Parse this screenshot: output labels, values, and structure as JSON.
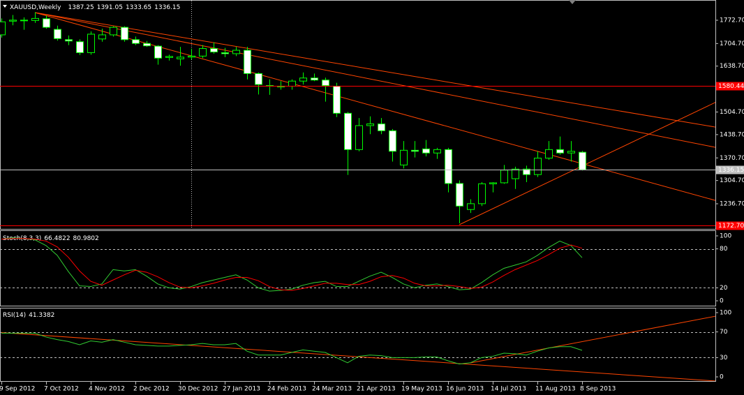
{
  "chart_data": [
    {
      "type": "candlestick",
      "title": "XAUUSD,Weekly",
      "x": [
        "9 Sep 2012",
        null,
        null,
        null,
        "7 Oct 2012",
        null,
        null,
        null,
        "4 Nov 2012",
        null,
        null,
        null,
        "2 Dec 2012",
        null,
        null,
        null,
        "30 Dec 2012",
        null,
        null,
        null,
        "27 Jan 2013",
        null,
        null,
        null,
        "24 Feb 2013",
        null,
        null,
        null,
        "24 Mar 2013",
        null,
        null,
        null,
        "21 Apr 2013",
        null,
        null,
        null,
        "19 May 2013",
        null,
        null,
        null,
        "16 Jun 2013",
        null,
        null,
        null,
        "14 Jul 2013",
        null,
        null,
        null,
        "11 Aug 2013",
        null,
        null,
        null,
        "8 Sep 2013"
      ],
      "open": [
        1730,
        1770,
        1773,
        1772,
        1777,
        1746,
        1716,
        1710,
        1678,
        1718,
        1730,
        1752,
        1716,
        1705,
        1697,
        1664,
        1660,
        1665,
        1668,
        1690,
        1678,
        1675,
        1685,
        1617,
        1580,
        1580,
        1580,
        1595,
        1604,
        1598,
        1580,
        1501,
        1395,
        1465,
        1470,
        1450,
        1350,
        1393,
        1397,
        1385,
        1395,
        1296,
        1220,
        1237,
        1295,
        1298,
        1310,
        1338,
        1322,
        1370,
        1395,
        1385,
        1387.25
      ],
      "high": [
        1778,
        1788,
        1781,
        1796,
        1787,
        1757,
        1728,
        1717,
        1740,
        1748,
        1755,
        1755,
        1725,
        1712,
        1700,
        1672,
        1695,
        1690,
        1700,
        1708,
        1692,
        1695,
        1695,
        1620,
        1600,
        1595,
        1600,
        1620,
        1617,
        1605,
        1590,
        1505,
        1487,
        1492,
        1487,
        1455,
        1420,
        1420,
        1423,
        1400,
        1400,
        1305,
        1250,
        1300,
        1300,
        1350,
        1345,
        1348,
        1390,
        1420,
        1433,
        1420,
        1391.05
      ],
      "low": [
        1722,
        1758,
        1745,
        1765,
        1748,
        1713,
        1700,
        1671,
        1672,
        1710,
        1725,
        1710,
        1700,
        1695,
        1643,
        1655,
        1640,
        1658,
        1662,
        1675,
        1665,
        1668,
        1600,
        1556,
        1555,
        1570,
        1570,
        1585,
        1595,
        1535,
        1490,
        1321,
        1390,
        1440,
        1440,
        1360,
        1340,
        1372,
        1375,
        1368,
        1270,
        1180,
        1210,
        1230,
        1270,
        1295,
        1280,
        1300,
        1315,
        1365,
        1380,
        1360,
        1333.65
      ],
      "close": [
        1768,
        1773,
        1771,
        1778,
        1752,
        1719,
        1712,
        1678,
        1732,
        1730,
        1752,
        1716,
        1705,
        1698,
        1662,
        1667,
        1665,
        1668,
        1690,
        1680,
        1675,
        1685,
        1617,
        1585,
        1582,
        1580,
        1595,
        1604,
        1598,
        1582,
        1501,
        1395,
        1465,
        1470,
        1450,
        1390,
        1393,
        1390,
        1385,
        1395,
        1296,
        1230,
        1237,
        1295,
        1298,
        1335,
        1338,
        1322,
        1370,
        1395,
        1385,
        1390,
        1336.15
      ],
      "bull_color": "#000000",
      "bear_color": "#ffffff",
      "wick_color": "#00ff00",
      "ylim": [
        1165.4,
        1827.7
      ],
      "yticks": [
        {
          "value": 1236.7,
          "label": "1236.70"
        },
        {
          "value": 1304.7,
          "label": "1304.70"
        },
        {
          "value": 1370.7,
          "label": "1370.70"
        },
        {
          "value": 1438.7,
          "label": "1438.70"
        },
        {
          "value": 1504.7,
          "label": "1504.70"
        },
        {
          "value": 1638.7,
          "label": "1638.70"
        },
        {
          "value": 1704.7,
          "label": "1704.70"
        },
        {
          "value": 1772.7,
          "label": "1772.70"
        }
      ],
      "hlines": [
        {
          "value": 1580.44,
          "label": "1580.44",
          "color": "#ff0000",
          "text_color": "#ffffff"
        },
        {
          "value": 1336.15,
          "label": "1336.15",
          "color": "#c0c0c0",
          "text_color": "#000000"
        },
        {
          "value": 1172.7,
          "label": "1172.70",
          "color": "#ff0000",
          "text_color": "#ffffff"
        }
      ],
      "trendlines": [
        {
          "x": [
            3,
            64
          ],
          "y": [
            1795,
            1460.4
          ],
          "color": "#ff4500"
        },
        {
          "x": [
            3,
            64
          ],
          "y": [
            1795,
            1401.2
          ],
          "color": "#ff4500"
        },
        {
          "x": [
            3,
            64
          ],
          "y": [
            1795,
            1246
          ],
          "color": "#ff4500"
        },
        {
          "x": [
            41,
            64
          ],
          "y": [
            1175.6,
            1533.8
          ],
          "color": "#ff4500"
        }
      ]
    },
    {
      "type": "line",
      "title": "Stoch(8,3,3)",
      "series": [
        {
          "color": "#32cd32",
          "values": [
            95,
            97,
            96,
            94,
            85,
            70,
            45,
            23,
            22,
            26,
            48,
            46,
            48,
            38,
            26,
            20,
            18,
            22,
            28,
            32,
            36,
            40,
            32,
            20,
            15,
            16,
            18,
            24,
            28,
            30,
            22,
            22,
            30,
            38,
            44,
            36,
            26,
            20,
            24,
            26,
            22,
            17,
            18,
            28,
            40,
            50,
            55,
            60,
            70,
            82,
            92,
            85,
            66.4822
          ]
        },
        {
          "color": "#ff0000",
          "values": [
            95,
            96,
            96,
            95,
            92,
            83,
            67,
            46,
            30,
            24,
            32,
            40,
            47,
            44,
            37,
            28,
            21,
            20,
            23,
            27,
            32,
            36,
            36,
            31,
            22,
            17,
            16,
            19,
            23,
            27,
            27,
            25,
            25,
            30,
            37,
            39,
            35,
            27,
            23,
            23,
            24,
            22,
            19,
            21,
            29,
            39,
            48,
            55,
            62,
            71,
            81,
            86,
            80.9802
          ]
        }
      ],
      "ylim": [
        -7.5,
        107.5
      ],
      "yticks": [
        0,
        20,
        80,
        100
      ],
      "levels": [
        20,
        80
      ]
    },
    {
      "type": "line",
      "title": "RSI(14)",
      "series": [
        {
          "color": "#32cd32",
          "values": [
            68,
            68,
            68,
            68,
            62,
            58,
            55,
            50,
            56,
            54,
            58,
            54,
            50,
            49,
            48,
            48,
            49,
            50,
            52,
            50,
            50,
            52,
            40,
            34,
            34,
            34,
            38,
            42,
            40,
            38,
            30,
            22,
            32,
            34,
            33,
            30,
            30,
            30,
            31,
            31,
            25,
            20,
            22,
            30,
            32,
            37,
            36,
            34,
            40,
            45,
            47,
            47,
            41.3382
          ]
        }
      ],
      "ylim": [
        -6.5,
        106.5
      ],
      "yticks": [
        0,
        30,
        70,
        100
      ],
      "levels": [
        30,
        70
      ],
      "trendlines": [
        {
          "x": [
            0,
            64
          ],
          "y": [
            69,
            -6.5
          ],
          "color": "#ff4500"
        },
        {
          "x": [
            42,
            64
          ],
          "y": [
            21.7,
            94.6
          ],
          "color": "#ff4500"
        }
      ]
    }
  ]
}
